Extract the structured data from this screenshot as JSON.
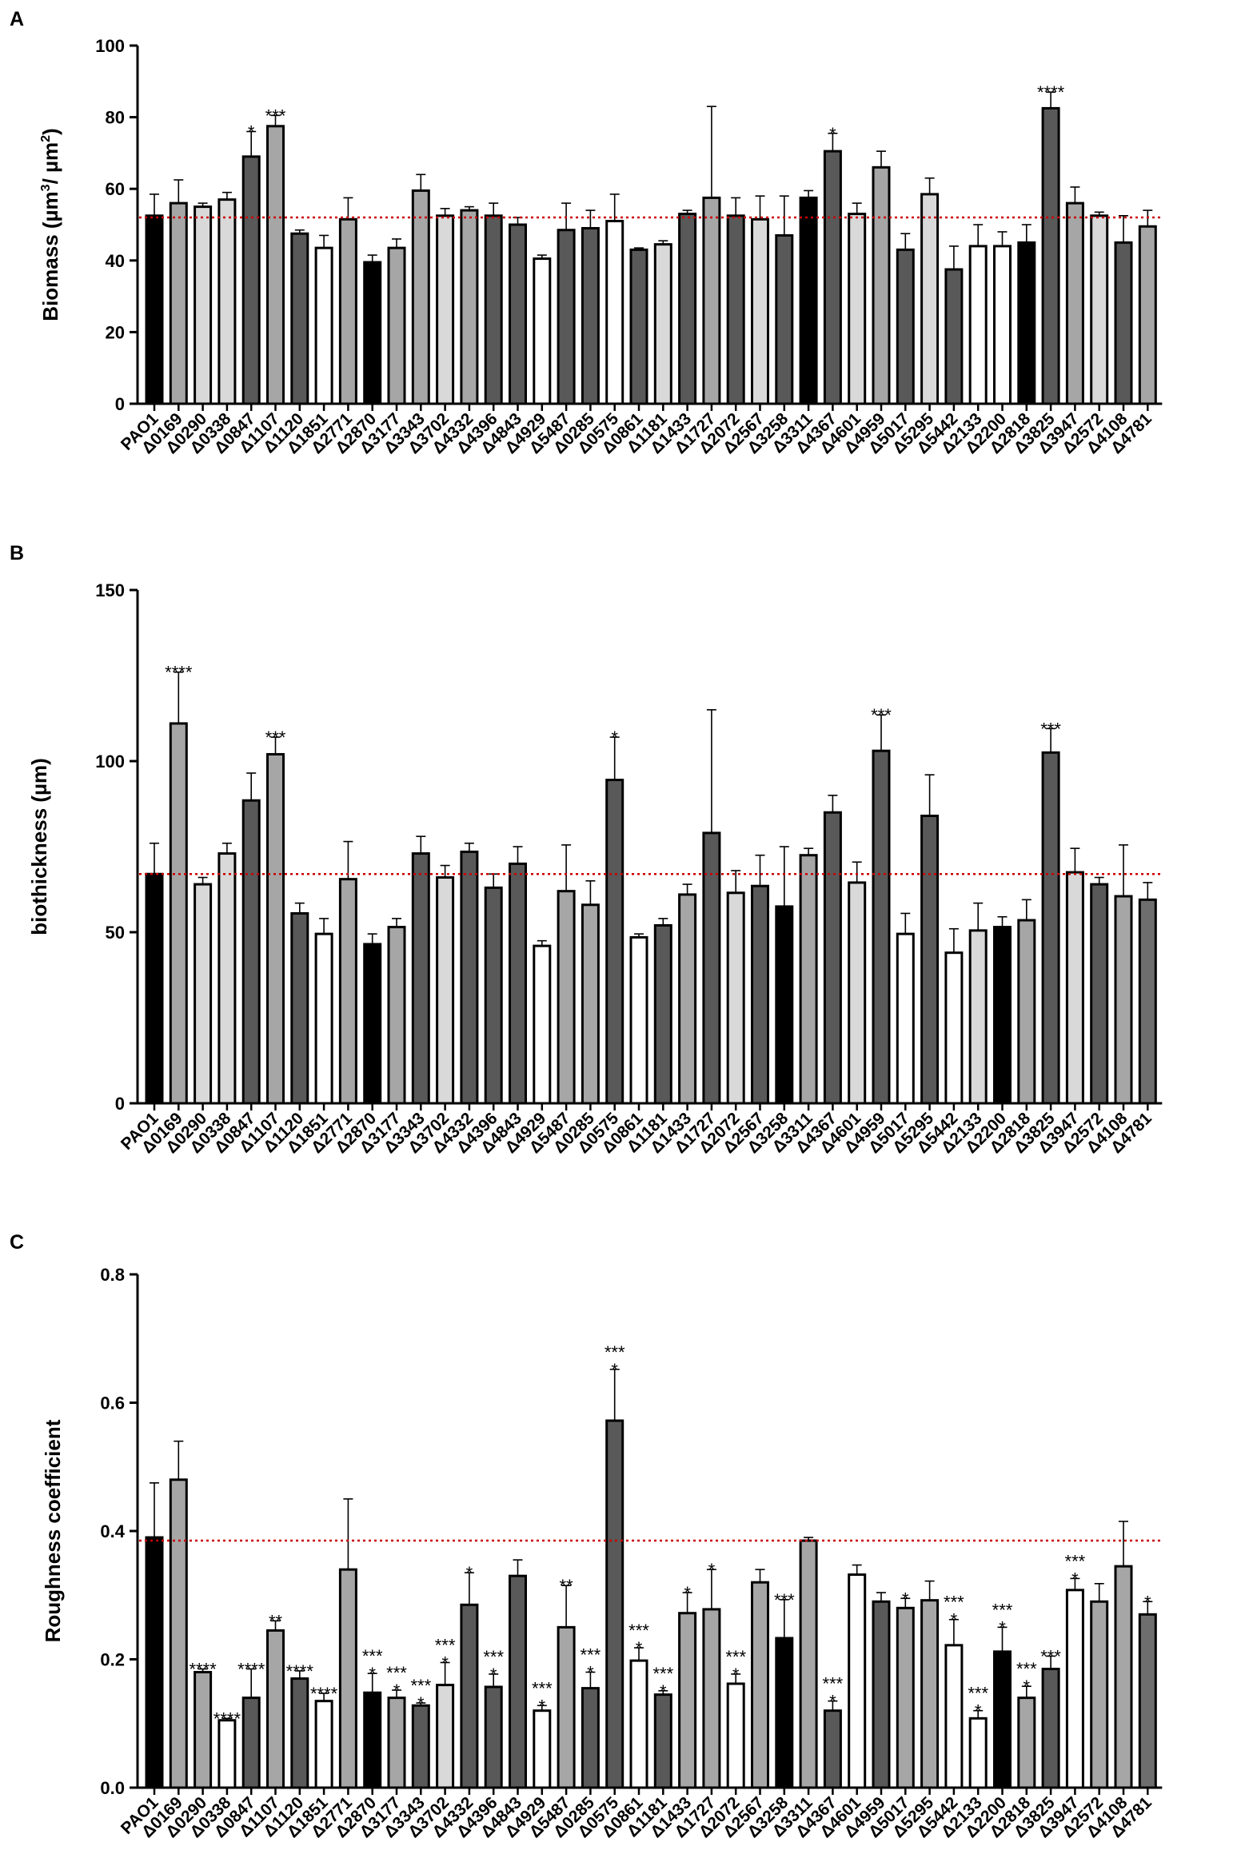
{
  "colors": {
    "black": "#000000",
    "dark": "#595959",
    "mid": "#a6a6a6",
    "light": "#d9d9d9",
    "white": "#ffffff",
    "grey": "#6e6e6e",
    "reference_line": "#cc0000"
  },
  "chart_data": [
    {
      "panel": "A",
      "type": "bar",
      "ylabel_main": "Biomass (µm",
      "ylabel_sup1": "3",
      "ylabel_mid": "/ µm",
      "ylabel_sup2": "2",
      "ylabel_end": ")",
      "ylim": [
        0,
        100
      ],
      "yticks": [
        0,
        20,
        40,
        60,
        80,
        100
      ],
      "yticks_labels": [
        "0",
        "20",
        "40",
        "60",
        "80",
        "100"
      ],
      "reference_value": 52,
      "categories": [
        "PAO1",
        "Δ0169",
        "Δ0290",
        "Δ0338",
        "Δ0847",
        "Δ1107",
        "Δ1120",
        "Δ1851",
        "Δ2771",
        "Δ2870",
        "Δ3177",
        "Δ3343",
        "Δ3702",
        "Δ4332",
        "Δ4396",
        "Δ4843",
        "Δ4929",
        "Δ5487",
        "Δ0285",
        "Δ0575",
        "Δ0861",
        "Δ1181",
        "Δ1433",
        "Δ1727",
        "Δ2072",
        "Δ2567",
        "Δ3258",
        "Δ3311",
        "Δ4367",
        "Δ4601",
        "Δ4959",
        "Δ5017",
        "Δ5295",
        "Δ5442",
        "Δ2133",
        "Δ2200",
        "Δ2818",
        "Δ3825",
        "Δ3947",
        "Δ2572",
        "Δ4108",
        "Δ4781"
      ],
      "values": [
        52.5,
        56,
        55,
        57,
        69,
        77.5,
        47.5,
        43.5,
        51.5,
        39.5,
        43.5,
        59.5,
        52.5,
        54,
        52.5,
        50,
        40.5,
        48.5,
        49,
        51,
        43,
        44.5,
        53,
        57.5,
        52.5,
        51.5,
        47,
        57.5,
        70.5,
        53,
        66,
        43,
        58.5,
        37.5,
        44,
        44,
        45,
        82.5,
        56,
        52.5,
        45,
        49.5
      ],
      "errors": [
        6,
        6.5,
        1,
        2,
        7,
        3,
        1,
        3.5,
        6,
        2,
        2.5,
        4.5,
        2,
        1,
        3.5,
        2,
        1,
        7.5,
        5,
        7.5,
        0.5,
        1,
        1,
        25.5,
        5,
        6.5,
        11,
        2,
        5,
        3,
        4.5,
        4.5,
        4.5,
        6.5,
        6,
        4,
        5,
        4.5,
        4.5,
        1,
        7.5,
        4.5
      ],
      "fill_keys": [
        "black",
        "mid",
        "light",
        "light",
        "dark",
        "mid",
        "dark",
        "white",
        "mid",
        "black",
        "mid",
        "mid",
        "light",
        "mid",
        "dark",
        "dark",
        "white",
        "dark",
        "dark",
        "white",
        "dark",
        "light",
        "dark",
        "mid",
        "dark",
        "light",
        "dark",
        "black",
        "dark",
        "light",
        "mid",
        "dark",
        "light",
        "dark",
        "white",
        "white",
        "black",
        "dark",
        "mid",
        "light",
        "dark",
        "mid"
      ],
      "annotations": [
        {
          "index": 4,
          "lines": [
            "*"
          ]
        },
        {
          "index": 5,
          "lines": [
            "***"
          ]
        },
        {
          "index": 28,
          "lines": [
            "*"
          ]
        },
        {
          "index": 37,
          "lines": [
            "****"
          ]
        }
      ]
    },
    {
      "panel": "B",
      "type": "bar",
      "ylabel_main": "biothickness (µm)",
      "ylim": [
        0,
        150
      ],
      "yticks": [
        0,
        50,
        100,
        150
      ],
      "yticks_labels": [
        "0",
        "50",
        "100",
        "150"
      ],
      "reference_value": 67,
      "categories": [
        "PAO1",
        "Δ0169",
        "Δ0290",
        "Δ0338",
        "Δ0847",
        "Δ1107",
        "Δ1120",
        "Δ1851",
        "Δ2771",
        "Δ2870",
        "Δ3177",
        "Δ3343",
        "Δ3702",
        "Δ4332",
        "Δ4396",
        "Δ4843",
        "Δ4929",
        "Δ5487",
        "Δ0285",
        "Δ0575",
        "Δ0861",
        "Δ1181",
        "Δ1433",
        "Δ1727",
        "Δ2072",
        "Δ2567",
        "Δ3258",
        "Δ3311",
        "Δ4367",
        "Δ4601",
        "Δ4959",
        "Δ5017",
        "Δ5295",
        "Δ5442",
        "Δ2133",
        "Δ2200",
        "Δ2818",
        "Δ3825",
        "Δ3947",
        "Δ2572",
        "Δ4108",
        "Δ4781"
      ],
      "values": [
        67,
        111,
        64,
        73,
        88.5,
        102,
        55.5,
        49.5,
        65.5,
        46.5,
        51.5,
        73,
        66,
        73.5,
        63,
        70,
        46,
        62,
        58,
        94.5,
        48.5,
        52,
        61,
        79,
        61.5,
        63.5,
        57.5,
        72.5,
        85,
        64.5,
        103,
        49.5,
        84,
        44,
        50.5,
        51.5,
        53.5,
        102.5,
        67.5,
        64,
        60.5,
        59.5
      ],
      "errors": [
        9,
        15,
        2,
        3,
        8,
        5,
        3,
        4.5,
        11,
        3,
        2.5,
        5,
        3.5,
        2.5,
        4,
        5,
        1.5,
        13.5,
        7,
        12.5,
        1,
        2,
        3,
        36,
        6.5,
        9,
        17.5,
        2,
        5,
        6,
        10.5,
        6,
        12,
        7,
        8,
        3,
        6,
        7,
        7,
        2,
        15,
        5
      ],
      "fill_keys": [
        "black",
        "mid",
        "light",
        "light",
        "dark",
        "mid",
        "dark",
        "white",
        "mid",
        "black",
        "mid",
        "dark",
        "light",
        "dark",
        "dark",
        "dark",
        "white",
        "mid",
        "mid",
        "dark",
        "white",
        "dark",
        "mid",
        "dark",
        "light",
        "dark",
        "black",
        "mid",
        "dark",
        "light",
        "dark",
        "white",
        "dark",
        "white",
        "light",
        "black",
        "mid",
        "dark",
        "light",
        "dark",
        "mid",
        "grey"
      ],
      "annotations": [
        {
          "index": 1,
          "lines": [
            "****"
          ]
        },
        {
          "index": 5,
          "lines": [
            "***"
          ]
        },
        {
          "index": 19,
          "lines": [
            "*"
          ]
        },
        {
          "index": 30,
          "lines": [
            "***"
          ]
        },
        {
          "index": 37,
          "lines": [
            "***"
          ]
        }
      ]
    },
    {
      "panel": "C",
      "type": "bar",
      "ylabel_main": "Roughness coefficient",
      "ylim": [
        0,
        0.8
      ],
      "yticks": [
        0,
        0.2,
        0.4,
        0.6,
        0.8
      ],
      "yticks_labels": [
        "0.0",
        "0.2",
        "0.4",
        "0.6",
        "0.8"
      ],
      "reference_value": 0.385,
      "categories": [
        "PAO1",
        "Δ0169",
        "Δ0290",
        "Δ0338",
        "Δ0847",
        "Δ1107",
        "Δ1120",
        "Δ1851",
        "Δ2771",
        "Δ2870",
        "Δ3177",
        "Δ3343",
        "Δ3702",
        "Δ4332",
        "Δ4396",
        "Δ4843",
        "Δ4929",
        "Δ5487",
        "Δ0285",
        "Δ0575",
        "Δ0861",
        "Δ1181",
        "Δ1433",
        "Δ1727",
        "Δ2072",
        "Δ2567",
        "Δ3258",
        "Δ3311",
        "Δ4367",
        "Δ4601",
        "Δ4959",
        "Δ5017",
        "Δ5295",
        "Δ5442",
        "Δ2133",
        "Δ2200",
        "Δ2818",
        "Δ3825",
        "Δ3947",
        "Δ2572",
        "Δ4108",
        "Δ4781"
      ],
      "values": [
        0.39,
        0.48,
        0.18,
        0.105,
        0.14,
        0.245,
        0.17,
        0.135,
        0.34,
        0.148,
        0.14,
        0.128,
        0.16,
        0.285,
        0.157,
        0.33,
        0.12,
        0.25,
        0.155,
        0.572,
        0.198,
        0.145,
        0.272,
        0.278,
        0.162,
        0.32,
        0.233,
        0.385,
        0.12,
        0.332,
        0.29,
        0.28,
        0.292,
        0.222,
        0.108,
        0.212,
        0.14,
        0.185,
        0.308,
        0.29,
        0.345,
        0.27
      ],
      "errors": [
        0.085,
        0.06,
        0.005,
        0.003,
        0.045,
        0.015,
        0.012,
        0.012,
        0.11,
        0.03,
        0.012,
        0.004,
        0.035,
        0.05,
        0.02,
        0.025,
        0.008,
        0.065,
        0.025,
        0.08,
        0.02,
        0.006,
        0.032,
        0.062,
        0.015,
        0.02,
        0.06,
        0.005,
        0.015,
        0.015,
        0.014,
        0.015,
        0.03,
        0.04,
        0.012,
        0.038,
        0.018,
        0.02,
        0.018,
        0.028,
        0.07,
        0.02
      ],
      "fill_keys": [
        "black",
        "mid",
        "mid",
        "white",
        "dark",
        "mid",
        "dark",
        "white",
        "mid",
        "black",
        "mid",
        "dark",
        "light",
        "dark",
        "dark",
        "dark",
        "white",
        "mid",
        "dark",
        "dark",
        "white",
        "dark",
        "mid",
        "mid",
        "white",
        "mid",
        "black",
        "mid",
        "dark",
        "white",
        "dark",
        "mid",
        "mid",
        "white",
        "white",
        "black",
        "mid",
        "dark",
        "white",
        "mid",
        "mid",
        "grey"
      ],
      "annotations": [
        {
          "index": 2,
          "lines": [
            "****"
          ]
        },
        {
          "index": 3,
          "lines": [
            "****"
          ]
        },
        {
          "index": 4,
          "lines": [
            "****"
          ]
        },
        {
          "index": 5,
          "lines": [
            "**"
          ]
        },
        {
          "index": 6,
          "lines": [
            "****"
          ]
        },
        {
          "index": 7,
          "lines": [
            "****"
          ]
        },
        {
          "index": 9,
          "lines": [
            "***",
            "*"
          ]
        },
        {
          "index": 10,
          "lines": [
            "***",
            "*"
          ]
        },
        {
          "index": 11,
          "lines": [
            "***",
            "*"
          ]
        },
        {
          "index": 12,
          "lines": [
            "***",
            "*"
          ]
        },
        {
          "index": 13,
          "lines": [
            "*"
          ]
        },
        {
          "index": 14,
          "lines": [
            "***",
            "*"
          ]
        },
        {
          "index": 16,
          "lines": [
            "***",
            "*"
          ]
        },
        {
          "index": 17,
          "lines": [
            "**"
          ]
        },
        {
          "index": 18,
          "lines": [
            "***",
            "*"
          ]
        },
        {
          "index": 19,
          "lines": [
            "***",
            "*"
          ]
        },
        {
          "index": 20,
          "lines": [
            "***",
            "*"
          ]
        },
        {
          "index": 21,
          "lines": [
            "***",
            "*"
          ]
        },
        {
          "index": 22,
          "lines": [
            "*"
          ]
        },
        {
          "index": 23,
          "lines": [
            "*"
          ]
        },
        {
          "index": 24,
          "lines": [
            "***",
            "*"
          ]
        },
        {
          "index": 26,
          "lines": [
            "***"
          ]
        },
        {
          "index": 28,
          "lines": [
            "***",
            "*"
          ]
        },
        {
          "index": 31,
          "lines": [
            "*"
          ]
        },
        {
          "index": 33,
          "lines": [
            "***",
            "*"
          ]
        },
        {
          "index": 34,
          "lines": [
            "***",
            "*"
          ]
        },
        {
          "index": 35,
          "lines": [
            "***",
            "*"
          ]
        },
        {
          "index": 36,
          "lines": [
            "***",
            "*"
          ]
        },
        {
          "index": 37,
          "lines": [
            "***"
          ]
        },
        {
          "index": 38,
          "lines": [
            "***",
            "*"
          ]
        },
        {
          "index": 41,
          "lines": [
            "*"
          ]
        }
      ]
    }
  ]
}
